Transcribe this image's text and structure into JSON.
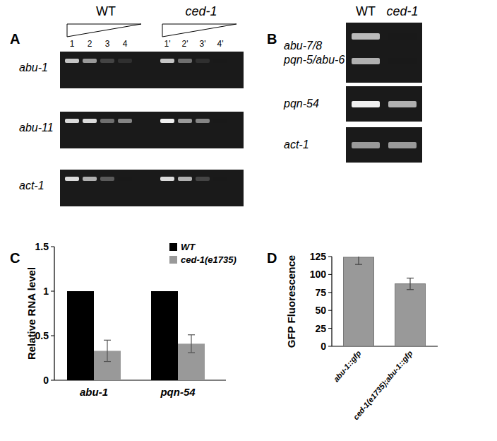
{
  "gels": [
    {
      "panel": "A",
      "groups": [
        "WT",
        "ced-1"
      ],
      "lanes": [
        "1",
        "2",
        "3",
        "4",
        "1'",
        "2'",
        "3'",
        "4'"
      ],
      "blocks": [
        {
          "rows": [
            {
              "label": "abu-1",
              "bands": [
                0.8,
                0.6,
                0.2,
                0.1,
                0.8,
                0.4,
                0.1,
                0
              ]
            }
          ]
        },
        {
          "rows": [
            {
              "label": "abu-11",
              "bands": [
                0.9,
                0.9,
                0.4,
                0.5,
                1,
                0.6,
                0.5,
                0
              ]
            }
          ]
        },
        {
          "rows": [
            {
              "label": "act-1",
              "bands": [
                0.9,
                0.7,
                0.3,
                0,
                0.9,
                0.7,
                0.2,
                0
              ]
            }
          ]
        }
      ]
    },
    {
      "panel": "B",
      "groups": [
        "WT",
        "ced-1"
      ],
      "blocks": [
        {
          "rows": [
            {
              "label": "abu-7/8",
              "bands": [
                0.75,
                0
              ]
            },
            {
              "label": "pqn-5/abu-6",
              "bands": [
                0.7,
                0
              ]
            }
          ]
        },
        {
          "rows": [
            {
              "label": "pqn-54",
              "bands": [
                1,
                0.7
              ]
            }
          ]
        },
        {
          "rows": [
            {
              "label": "act-1",
              "bands": [
                0.6,
                0.6
              ]
            }
          ]
        }
      ]
    }
  ],
  "chart_data": [
    {
      "panel": "C",
      "type": "bar",
      "y_label": "Relative RNA level",
      "categories": [
        "abu-1",
        "pqn-54"
      ],
      "series": [
        {
          "name": "WT",
          "color": "#000000",
          "values": [
            1,
            1
          ]
        },
        {
          "name": "ced-1(e1735)",
          "color": "#999999",
          "values": [
            0.33,
            0.41
          ],
          "errors": [
            0.12,
            0.1
          ]
        }
      ],
      "ylim": [
        0,
        1.5
      ],
      "yticks": [
        0,
        0.5,
        1,
        1.5
      ],
      "legend": "top-right"
    },
    {
      "panel": "D",
      "type": "bar",
      "y_label": "GFP Fluorescence",
      "categories": [
        "abu-1::gfp",
        "ced-1(e1735);abu-1::gfp"
      ],
      "values": [
        124,
        87
      ],
      "errors": [
        10,
        8
      ],
      "color": "#999999",
      "ylim": [
        0,
        125
      ],
      "yticks": [
        0,
        25,
        50,
        75,
        100,
        125
      ]
    }
  ]
}
